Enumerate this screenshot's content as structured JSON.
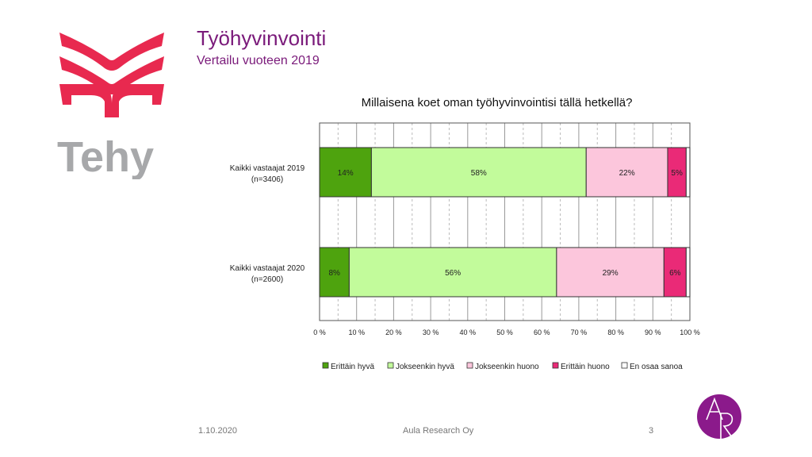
{
  "header": {
    "title": "Työhyvinvointi",
    "subtitle": "Vertailu vuoteen 2019"
  },
  "logo": {
    "text": "Tehy",
    "color": "#e8294f"
  },
  "footer": {
    "date": "1.10.2020",
    "company": "Aula Research Oy",
    "page": "3",
    "logo_text": "AR",
    "logo_color": "#8b1a8b"
  },
  "chart_data": {
    "type": "bar",
    "orientation": "horizontal",
    "stacked": true,
    "title": "Millaisena koet oman työhyvinvointisi tällä hetkellä?",
    "categories": [
      "Kaikki vastaajat 2019|(n=3406)",
      "Kaikki vastaajat 2020|(n=2600)"
    ],
    "series": [
      {
        "name": "Erittäin hyvä",
        "color": "#4ea30e",
        "values": [
          14,
          8
        ]
      },
      {
        "name": "Jokseenkin hyvä",
        "color": "#c2fb9b",
        "values": [
          58,
          56
        ]
      },
      {
        "name": "Jokseenkin huono",
        "color": "#fcc6dc",
        "values": [
          22,
          29
        ]
      },
      {
        "name": "Erittäin huono",
        "color": "#ea2a77",
        "values": [
          5,
          6
        ]
      },
      {
        "name": "En osaa sanoa",
        "color": "#ffffff",
        "values": [
          1,
          1
        ]
      }
    ],
    "data_labels": [
      [
        "14%",
        "58%",
        "22%",
        "5%",
        ""
      ],
      [
        "8%",
        "56%",
        "29%",
        "6%",
        ""
      ]
    ],
    "xlim": [
      0,
      100
    ],
    "xticks": [
      "0 %",
      "10 %",
      "20 %",
      "30 %",
      "40 %",
      "50 %",
      "60 %",
      "70 %",
      "80 %",
      "90 %",
      "100 %"
    ],
    "grid": true,
    "legend_position": "bottom"
  }
}
